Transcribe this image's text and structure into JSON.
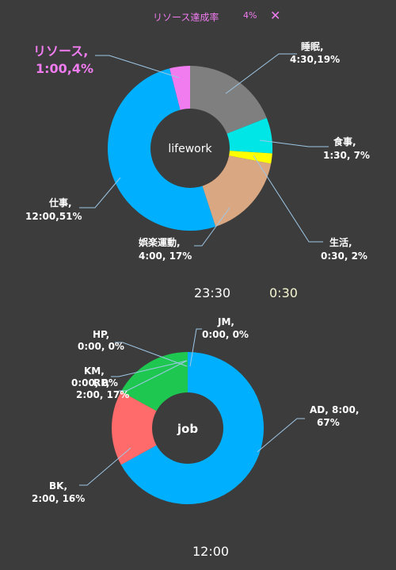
{
  "header": {
    "title": "リソース達成率",
    "percent": "4%",
    "close_icon": "close-icon"
  },
  "charts": [
    {
      "id": "lifework",
      "center_label": "lifework",
      "slices": [
        {
          "name": "睡眠",
          "time": "4:30",
          "percent": 19,
          "color": "#7f7f7f",
          "label_line1": "睡眠,",
          "label_line2": "4:30,19%"
        },
        {
          "name": "食事",
          "time": "1:30",
          "percent": 7,
          "color": "#00e6e6",
          "label_line1": "食事,",
          "label_line2": "1:30, 7%"
        },
        {
          "name": "生活",
          "time": "0:30",
          "percent": 2,
          "color": "#ffff00",
          "label_line1": "生活,",
          "label_line2": "0:30, 2%"
        },
        {
          "name": "娯楽運動",
          "time": "4:00",
          "percent": 17,
          "color": "#d9a883",
          "label_line1": "娯楽運動,",
          "label_line2": "4:00, 17%"
        },
        {
          "name": "仕事",
          "time": "12:00",
          "percent": 51,
          "color": "#00b0ff",
          "label_line1": "仕事,",
          "label_line2": "12:00,51%"
        },
        {
          "name": "リソース",
          "time": "1:00",
          "percent": 4,
          "color": "#f07cf0",
          "label_line1": "リソース,",
          "label_line2": "1:00,4%"
        }
      ]
    },
    {
      "id": "job",
      "center_label": "job",
      "slices": [
        {
          "name": "AD",
          "time": "8:00",
          "percent": 67,
          "color": "#00b0ff",
          "label_line1": "AD, 8:00,",
          "label_line2": "67%"
        },
        {
          "name": "BK",
          "time": "2:00",
          "percent": 16,
          "color": "#ff6b6b",
          "label_line1": "BK,",
          "label_line2": "2:00, 16%"
        },
        {
          "name": "RP",
          "time": "2:00",
          "percent": 17,
          "color": "#1ec850",
          "label_line1": "RP,",
          "label_line2": "2:00, 17%"
        },
        {
          "name": "KM",
          "time": "0:00",
          "percent": 0,
          "color": "#ffffff",
          "label_line1": "KM,",
          "label_line2": "0:00, 0%"
        },
        {
          "name": "HP",
          "time": "0:00",
          "percent": 0,
          "color": "#ffffff",
          "label_line1": "HP,",
          "label_line2": "0:00, 0%"
        },
        {
          "name": "JM",
          "time": "0:00",
          "percent": 0,
          "color": "#ffffff",
          "label_line1": "JM,",
          "label_line2": "0:00, 0%"
        }
      ]
    }
  ],
  "times": {
    "total_lifework": "23:30",
    "remaining": "0:30",
    "total_job": "12:00"
  }
}
